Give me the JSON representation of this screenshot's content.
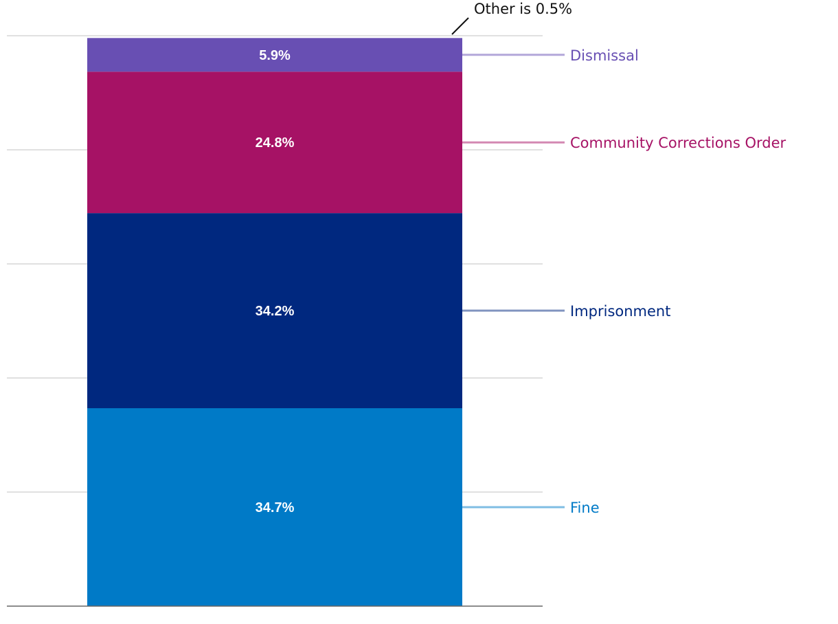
{
  "chart_data": {
    "type": "bar",
    "stacked": true,
    "title": "",
    "xlabel": "",
    "ylabel": "",
    "ylim": [
      0,
      100
    ],
    "grid": true,
    "legend": "right",
    "categories": [
      ""
    ],
    "series": [
      {
        "name": "Fine",
        "values": [
          34.7
        ],
        "label": "34.7%",
        "color": "#007ac7",
        "leader_color": "#7fbde3"
      },
      {
        "name": "Imprisonment",
        "values": [
          34.2
        ],
        "label": "34.2%",
        "color": "#00287f",
        "leader_color": "#8093bf"
      },
      {
        "name": "Community Corrections Order",
        "values": [
          24.8
        ],
        "label": "24.8%",
        "color": "#a61265",
        "leader_color": "#d388b2"
      },
      {
        "name": "Dismissal",
        "values": [
          5.9
        ],
        "label": "5.9%",
        "color": "#684fb3",
        "leader_color": "#b3a7d9"
      },
      {
        "name": "Other",
        "values": [
          0.5
        ],
        "color": "#ffffff"
      }
    ],
    "annotation": "Other is 0.5%"
  }
}
